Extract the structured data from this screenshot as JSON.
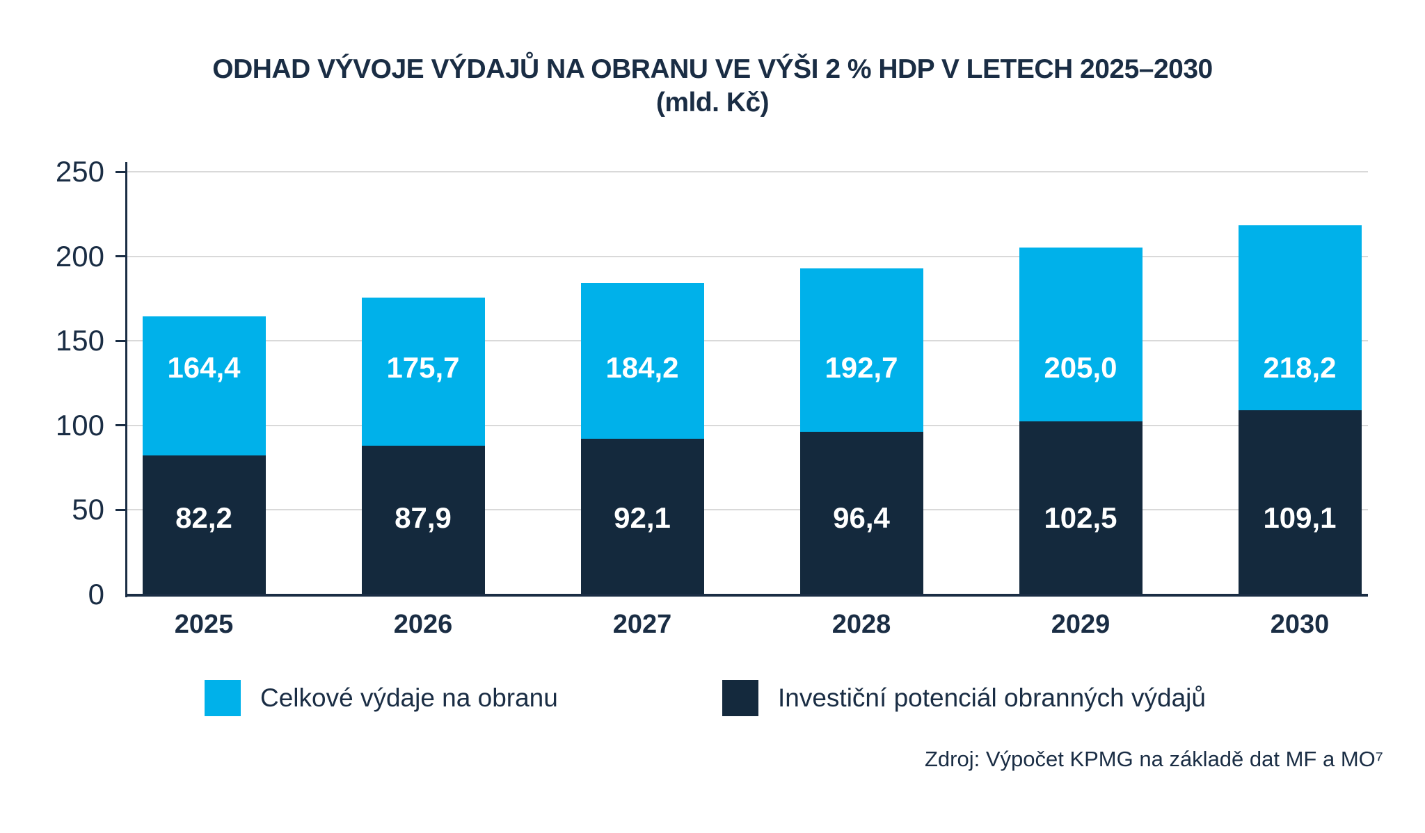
{
  "page": {
    "background": "#ffffff"
  },
  "chart_data": {
    "type": "bar",
    "variant": "stacked-overlay-columns",
    "title": "ODHAD VÝVOJE VÝDAJŮ NA OBRANU VE VÝŠI 2 % HDP V LETECH 2025–2030",
    "subtitle": "(mld. Kč)",
    "categories": [
      "2025",
      "2026",
      "2027",
      "2028",
      "2029",
      "2030"
    ],
    "series": [
      {
        "name": "Celkové výdaje na obranu",
        "color": "#00b1ea",
        "values": [
          164.4,
          175.7,
          184.2,
          192.7,
          205.0,
          218.2
        ],
        "labels": [
          "164,4",
          "175,7",
          "184,2",
          "192,7",
          "205,0",
          "218,2"
        ]
      },
      {
        "name": "Investiční potenciál obranných výdajů",
        "color": "#14293d",
        "values": [
          82.2,
          87.9,
          92.1,
          96.4,
          102.5,
          109.1
        ],
        "labels": [
          "82,2",
          "87,9",
          "92,1",
          "96,4",
          "102,5",
          "109,1"
        ]
      }
    ],
    "ylim": [
      0,
      250
    ],
    "yticks": [
      0,
      50,
      100,
      150,
      200,
      250
    ],
    "grid": "horizontal",
    "grid_color": "#d9d9d9",
    "axis_color": "#1a2d44",
    "value_label_color": "#ffffff",
    "legend_position": "bottom"
  },
  "source": {
    "text": "Zdroj: Výpočet KPMG na základě dat MF a MO⁷"
  }
}
